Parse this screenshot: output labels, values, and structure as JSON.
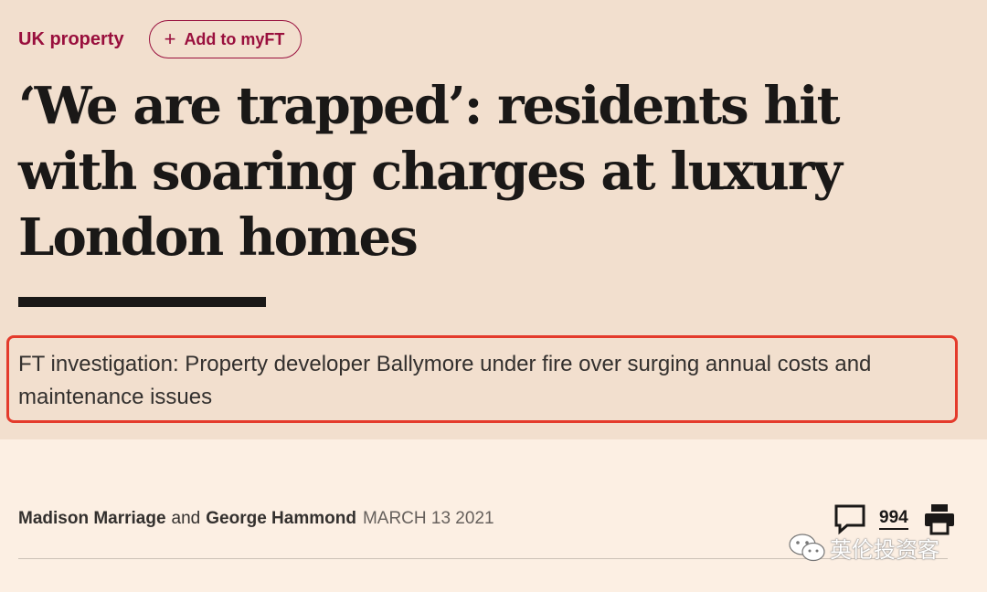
{
  "topic": {
    "label": "UK property",
    "myft_button": "Add to myFT",
    "myft_icon": "plus-icon"
  },
  "headline": "‘We are trapped’: residents hit with soaring charges at luxury London homes",
  "standfirst": "FT investigation: Property developer Ballymore under fire over surging annual costs and maintenance issues",
  "byline": {
    "author1": "Madison Marriage",
    "conjunction": "and",
    "author2": "George Hammond",
    "date": "MARCH 13 2021"
  },
  "tools": {
    "comment_icon": "speech-bubble-icon",
    "comment_count": "994",
    "print_icon": "printer-icon"
  },
  "watermark": {
    "icon": "wechat-icon",
    "text": "英伦投资客"
  },
  "colors": {
    "header_bg": "#f2dfce",
    "page_bg": "#fcefe3",
    "claret": "#990f3d",
    "highlight_box": "#e43b2c"
  }
}
